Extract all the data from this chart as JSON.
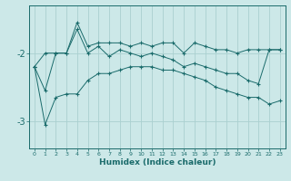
{
  "xlabel": "Humidex (Indice chaleur)",
  "bg_color": "#cce8e8",
  "line_color": "#1a6b6b",
  "grid_color": "#aad0d0",
  "x": [
    0,
    1,
    2,
    3,
    4,
    5,
    6,
    7,
    8,
    9,
    10,
    11,
    12,
    13,
    14,
    15,
    16,
    17,
    18,
    19,
    20,
    21,
    22,
    23
  ],
  "y_upper": [
    -2.2,
    -2.0,
    -2.0,
    -2.0,
    -1.55,
    -1.9,
    -1.85,
    -1.85,
    -1.85,
    -1.9,
    -1.85,
    -1.9,
    -1.85,
    -1.85,
    -2.0,
    -1.85,
    -1.9,
    -1.95,
    -1.95,
    -2.0,
    -1.95,
    -1.95,
    -1.95,
    -1.95
  ],
  "y_main": [
    -2.2,
    -2.55,
    -2.0,
    -2.0,
    -1.65,
    -2.0,
    -1.9,
    -2.05,
    -1.95,
    -2.0,
    -2.05,
    -2.0,
    -2.05,
    -2.1,
    -2.2,
    -2.15,
    -2.2,
    -2.25,
    -2.3,
    -2.3,
    -2.4,
    -2.45,
    -1.95,
    -1.95
  ],
  "y_lower": [
    -2.2,
    -3.05,
    -2.65,
    -2.6,
    -2.6,
    -2.4,
    -2.3,
    -2.3,
    -2.25,
    -2.2,
    -2.2,
    -2.2,
    -2.25,
    -2.25,
    -2.3,
    -2.35,
    -2.4,
    -2.5,
    -2.55,
    -2.6,
    -2.65,
    -2.65,
    -2.75,
    -2.7
  ],
  "yticks": [
    -3,
    -2
  ],
  "ylim": [
    -3.4,
    -1.3
  ],
  "xlim": [
    -0.5,
    23.5
  ],
  "xtick_labels": [
    "0",
    "1",
    "2",
    "3",
    "4",
    "5",
    "6",
    "7",
    "8",
    "9",
    "10",
    "11",
    "12",
    "13",
    "14",
    "15",
    "16",
    "17",
    "18",
    "19",
    "20",
    "21",
    "22",
    "23"
  ]
}
